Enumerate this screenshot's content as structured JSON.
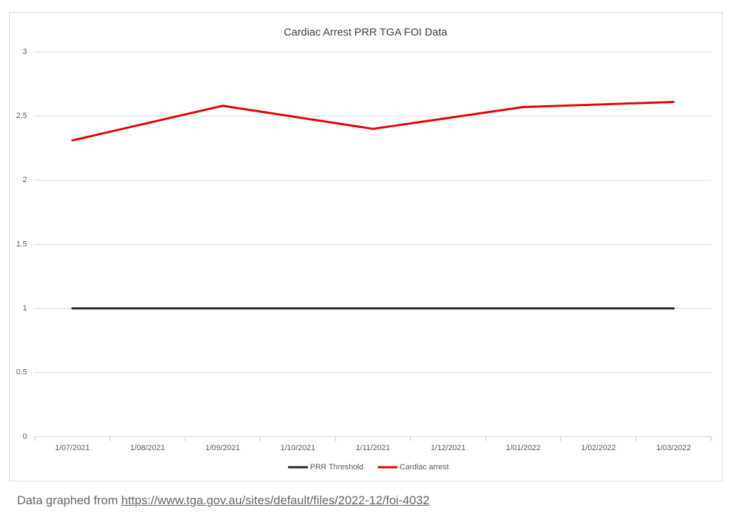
{
  "chart_data": {
    "type": "line",
    "title": "Cardiac Arrest PRR TGA FOI Data",
    "categories": [
      "1/07/2021",
      "1/08/2021",
      "1/09/2021",
      "1/10/2021",
      "1/11/2021",
      "1/12/2021",
      "1/01/2022",
      "1/02/2022",
      "1/03/2022"
    ],
    "series": [
      {
        "name": "PRR Threshold",
        "color": "#262626",
        "values": [
          1,
          1,
          1,
          1,
          1,
          1,
          1,
          1,
          1
        ]
      },
      {
        "name": "Cardiac arrest",
        "color": "#e60000",
        "values": [
          2.31,
          2.445,
          2.58,
          2.49,
          2.4,
          2.485,
          2.57,
          2.59,
          2.61
        ]
      }
    ],
    "ylim": [
      0,
      3
    ],
    "yticks": [
      0,
      0.5,
      1,
      1.5,
      2,
      2.5,
      3
    ],
    "grid": true,
    "legend": "bottom"
  },
  "source_prefix": "Data graphed from",
  "source_url": "https://www.tga.gov.au/sites/default/files/2022-12/foi-4032"
}
